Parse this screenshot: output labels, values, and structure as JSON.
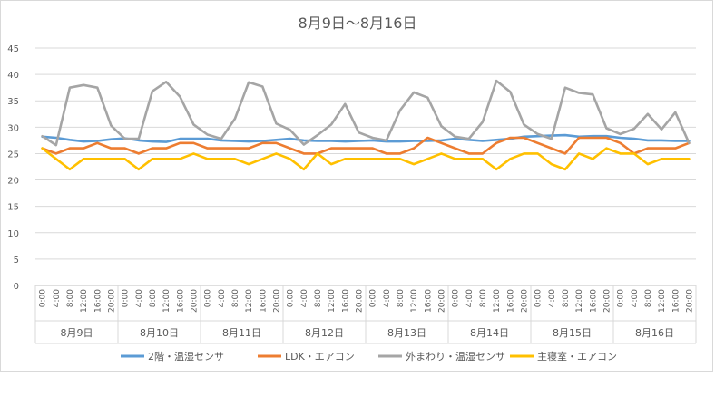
{
  "chart_data": {
    "type": "line",
    "title": "8月9日～8月16日",
    "xlabel": "",
    "ylabel": "",
    "ylim": [
      0,
      45
    ],
    "yticks": [
      0,
      5,
      10,
      15,
      20,
      25,
      30,
      35,
      40,
      45
    ],
    "grid": true,
    "legend_position": "bottom",
    "x_tick_labels": [
      "0:00",
      "4:00",
      "8:00",
      "12:00",
      "16:00",
      "20:00"
    ],
    "day_labels": [
      "8月9日",
      "8月10日",
      "8月11日",
      "8月12日",
      "8月13日",
      "8月14日",
      "8月15日",
      "8月16日"
    ],
    "x": [
      "8/9 0:00",
      "8/9 4:00",
      "8/9 8:00",
      "8/9 12:00",
      "8/9 16:00",
      "8/9 20:00",
      "8/10 0:00",
      "8/10 4:00",
      "8/10 8:00",
      "8/10 12:00",
      "8/10 16:00",
      "8/10 20:00",
      "8/11 0:00",
      "8/11 4:00",
      "8/11 8:00",
      "8/11 12:00",
      "8/11 16:00",
      "8/11 20:00",
      "8/12 0:00",
      "8/12 4:00",
      "8/12 8:00",
      "8/12 12:00",
      "8/12 16:00",
      "8/12 20:00",
      "8/13 0:00",
      "8/13 4:00",
      "8/13 8:00",
      "8/13 12:00",
      "8/13 16:00",
      "8/13 20:00",
      "8/14 0:00",
      "8/14 4:00",
      "8/14 8:00",
      "8/14 12:00",
      "8/14 16:00",
      "8/14 20:00",
      "8/15 0:00",
      "8/15 4:00",
      "8/15 8:00",
      "8/15 12:00",
      "8/15 16:00",
      "8/15 20:00",
      "8/16 0:00",
      "8/16 4:00",
      "8/16 8:00",
      "8/16 12:00",
      "8/16 16:00",
      "8/16 20:00"
    ],
    "series": [
      {
        "name": "2階・温湿センサ",
        "color": "#5b9bd5",
        "values": [
          28.2,
          28.0,
          27.6,
          27.3,
          27.4,
          27.7,
          27.9,
          27.5,
          27.3,
          27.2,
          27.8,
          27.8,
          27.8,
          27.5,
          27.4,
          27.3,
          27.4,
          27.6,
          27.8,
          27.5,
          27.4,
          27.4,
          27.3,
          27.4,
          27.5,
          27.3,
          27.3,
          27.4,
          27.4,
          27.5,
          27.8,
          27.6,
          27.4,
          27.6,
          27.8,
          28.2,
          28.3,
          28.4,
          28.5,
          28.2,
          28.3,
          28.3,
          28.0,
          27.8,
          27.5,
          27.5,
          27.4,
          27.4
        ]
      },
      {
        "name": "LDK・エアコン",
        "color": "#ed7d31",
        "values": [
          26,
          25,
          26,
          26,
          27,
          26,
          26,
          25,
          26,
          26,
          27,
          27,
          26,
          26,
          26,
          26,
          27,
          27,
          26,
          25,
          25,
          26,
          26,
          26,
          26,
          25,
          25,
          26,
          28,
          27,
          26,
          25,
          25,
          27,
          28,
          28,
          27,
          26,
          25,
          28,
          28,
          28,
          27,
          25,
          26,
          26,
          26,
          27
        ]
      },
      {
        "name": "外まわり・温湿センサ",
        "color": "#a5a5a5",
        "values": [
          28.3,
          26.6,
          37.5,
          38.0,
          37.5,
          30.3,
          27.8,
          27.8,
          36.8,
          38.6,
          35.8,
          30.5,
          28.6,
          27.8,
          31.6,
          38.5,
          37.7,
          30.7,
          29.5,
          26.7,
          28.5,
          30.5,
          34.4,
          29.0,
          28.0,
          27.5,
          33.2,
          36.6,
          35.6,
          30.2,
          28.2,
          27.8,
          31.0,
          38.8,
          36.7,
          30.5,
          28.7,
          27.8,
          37.5,
          36.5,
          36.2,
          29.8,
          28.7,
          29.7,
          32.5,
          29.6,
          32.8,
          27.0
        ]
      },
      {
        "name": "主寝室・エアコン",
        "color": "#ffc000",
        "values": [
          26,
          24,
          22,
          24,
          24,
          24,
          24,
          22,
          24,
          24,
          24,
          25,
          24,
          24,
          24,
          23,
          24,
          25,
          24,
          22,
          25,
          23,
          24,
          24,
          24,
          24,
          24,
          23,
          24,
          25,
          24,
          24,
          24,
          22,
          24,
          25,
          25,
          23,
          22,
          25,
          24,
          26,
          25,
          25,
          23,
          24,
          24,
          24
        ]
      }
    ]
  }
}
